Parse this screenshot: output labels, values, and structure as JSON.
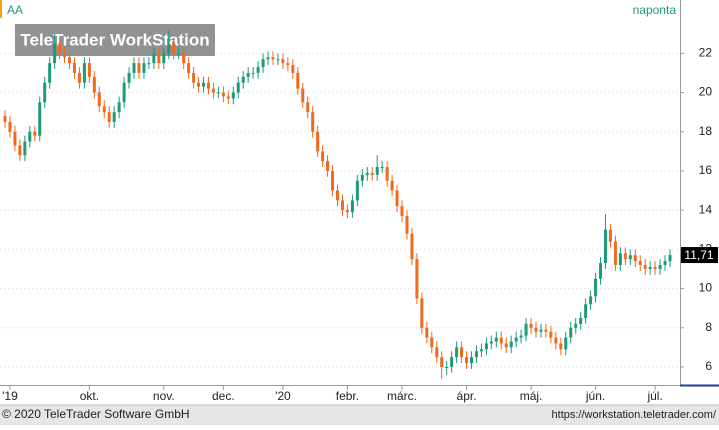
{
  "chart_data": {
    "type": "candlestick",
    "symbol": "AA",
    "interval": "naponta",
    "watermark": "TeleTrader WorkStation",
    "footer_left": "© 2020 TeleTrader Software GmbH",
    "footer_right": "https://workstation.teletrader.com/",
    "last_value_label": "11,71",
    "up_color": "#1b9a7c",
    "down_color": "#f0691c",
    "grid": true,
    "ylim": [
      5.08,
      24.72
    ],
    "yticks": [
      6,
      8,
      10,
      12,
      14,
      16,
      18,
      20,
      22
    ],
    "xlim": [
      -1,
      135
    ],
    "xticks": [
      {
        "value": 1,
        "label": "'19"
      },
      {
        "value": 17,
        "label": "okt."
      },
      {
        "value": 32,
        "label": "nov."
      },
      {
        "value": 44,
        "label": "dec."
      },
      {
        "value": 56,
        "label": "'20"
      },
      {
        "value": 69,
        "label": "febr."
      },
      {
        "value": 80,
        "label": "márc."
      },
      {
        "value": 93,
        "label": "ápr."
      },
      {
        "value": 106,
        "label": "máj."
      },
      {
        "value": 119,
        "label": "jún."
      },
      {
        "value": 131,
        "label": "júl."
      }
    ],
    "candles": [
      [
        18.8,
        19.1,
        18.2,
        18.5
      ],
      [
        18.5,
        18.8,
        17.7,
        18.0
      ],
      [
        18.0,
        18.3,
        17.0,
        17.3
      ],
      [
        17.3,
        17.6,
        16.5,
        16.8
      ],
      [
        16.8,
        17.8,
        16.5,
        17.5
      ],
      [
        17.5,
        18.3,
        17.2,
        18.0
      ],
      [
        18.0,
        18.3,
        17.5,
        17.8
      ],
      [
        17.8,
        19.8,
        17.5,
        19.5
      ],
      [
        19.5,
        20.8,
        19.2,
        20.5
      ],
      [
        20.5,
        21.8,
        20.2,
        21.5
      ],
      [
        21.5,
        23.0,
        21.2,
        22.5
      ],
      [
        22.5,
        22.8,
        21.7,
        22.0
      ],
      [
        22.0,
        22.3,
        21.5,
        21.8
      ],
      [
        21.8,
        22.1,
        21.2,
        21.5
      ],
      [
        21.5,
        21.8,
        20.7,
        21.0
      ],
      [
        21.0,
        21.3,
        20.2,
        20.5
      ],
      [
        20.5,
        21.8,
        20.2,
        21.5
      ],
      [
        21.5,
        21.8,
        20.5,
        20.8
      ],
      [
        20.8,
        21.1,
        19.7,
        20.0
      ],
      [
        20.0,
        20.3,
        19.0,
        19.3
      ],
      [
        19.3,
        19.6,
        18.7,
        19.0
      ],
      [
        19.0,
        19.3,
        18.2,
        18.5
      ],
      [
        18.5,
        19.3,
        18.2,
        19.0
      ],
      [
        19.0,
        19.8,
        18.7,
        19.5
      ],
      [
        19.5,
        20.8,
        19.2,
        20.5
      ],
      [
        20.5,
        21.3,
        20.2,
        21.0
      ],
      [
        21.0,
        21.8,
        20.7,
        21.5
      ],
      [
        21.5,
        21.8,
        20.7,
        21.0
      ],
      [
        21.0,
        21.8,
        20.7,
        21.5
      ],
      [
        21.5,
        21.8,
        21.2,
        21.5
      ],
      [
        21.5,
        22.3,
        21.2,
        22.0
      ],
      [
        22.0,
        22.3,
        21.2,
        21.5
      ],
      [
        21.5,
        22.3,
        21.2,
        22.0
      ],
      [
        22.0,
        23.2,
        21.7,
        22.5
      ],
      [
        22.5,
        22.8,
        21.7,
        22.0
      ],
      [
        22.0,
        22.3,
        21.7,
        22.0
      ],
      [
        22.0,
        22.3,
        21.2,
        21.5
      ],
      [
        21.5,
        21.8,
        20.7,
        21.0
      ],
      [
        21.0,
        21.3,
        20.2,
        20.5
      ],
      [
        20.5,
        20.8,
        20.0,
        20.3
      ],
      [
        20.3,
        20.8,
        20.0,
        20.5
      ],
      [
        20.5,
        20.8,
        19.9,
        20.2
      ],
      [
        20.2,
        20.5,
        19.7,
        20.0
      ],
      [
        20.0,
        20.3,
        19.7,
        20.0
      ],
      [
        20.0,
        20.3,
        19.5,
        19.8
      ],
      [
        19.8,
        20.1,
        19.4,
        19.7
      ],
      [
        19.7,
        20.3,
        19.4,
        20.0
      ],
      [
        20.0,
        20.8,
        19.7,
        20.5
      ],
      [
        20.5,
        21.1,
        20.2,
        20.8
      ],
      [
        20.8,
        21.3,
        20.5,
        21.0
      ],
      [
        21.0,
        21.3,
        20.7,
        21.0
      ],
      [
        21.0,
        21.6,
        20.7,
        21.3
      ],
      [
        21.3,
        22.0,
        21.0,
        21.7
      ],
      [
        21.7,
        22.1,
        21.4,
        21.8
      ],
      [
        21.8,
        22.1,
        21.4,
        21.7
      ],
      [
        21.7,
        22.0,
        21.4,
        21.7
      ],
      [
        21.7,
        22.0,
        21.2,
        21.5
      ],
      [
        21.5,
        21.8,
        21.1,
        21.4
      ],
      [
        21.4,
        21.7,
        20.7,
        21.0
      ],
      [
        21.0,
        21.3,
        19.9,
        20.2
      ],
      [
        20.2,
        20.5,
        19.2,
        19.5
      ],
      [
        19.5,
        19.8,
        18.7,
        19.0
      ],
      [
        19.0,
        19.3,
        17.7,
        18.0
      ],
      [
        18.0,
        18.3,
        16.7,
        17.0
      ],
      [
        17.0,
        17.3,
        16.2,
        16.5
      ],
      [
        16.5,
        16.8,
        15.7,
        16.0
      ],
      [
        16.0,
        16.3,
        14.7,
        15.0
      ],
      [
        15.0,
        15.3,
        14.2,
        14.5
      ],
      [
        14.5,
        14.8,
        13.7,
        14.0
      ],
      [
        14.0,
        14.3,
        13.6,
        13.9
      ],
      [
        13.9,
        14.8,
        13.6,
        14.5
      ],
      [
        14.5,
        15.8,
        14.2,
        15.5
      ],
      [
        15.5,
        16.1,
        15.2,
        15.8
      ],
      [
        15.8,
        16.2,
        15.5,
        15.9
      ],
      [
        15.9,
        16.2,
        15.5,
        15.8
      ],
      [
        15.8,
        16.8,
        15.5,
        16.2
      ],
      [
        16.2,
        16.5,
        15.9,
        16.2
      ],
      [
        16.2,
        16.5,
        15.2,
        15.5
      ],
      [
        15.5,
        15.8,
        14.7,
        15.0
      ],
      [
        15.0,
        15.3,
        13.9,
        14.2
      ],
      [
        14.2,
        14.5,
        13.4,
        13.7
      ],
      [
        13.7,
        14.0,
        12.5,
        12.8
      ],
      [
        12.8,
        13.1,
        11.2,
        11.5
      ],
      [
        11.5,
        11.8,
        9.2,
        9.5
      ],
      [
        9.5,
        9.8,
        7.7,
        8.0
      ],
      [
        8.0,
        8.3,
        7.2,
        7.5
      ],
      [
        7.5,
        7.8,
        6.7,
        7.0
      ],
      [
        7.0,
        7.3,
        6.2,
        6.5
      ],
      [
        6.5,
        6.8,
        5.4,
        6.0
      ],
      [
        6.0,
        6.3,
        5.6,
        6.0
      ],
      [
        6.0,
        6.8,
        5.7,
        6.5
      ],
      [
        6.5,
        7.3,
        6.2,
        7.0
      ],
      [
        7.0,
        7.3,
        6.2,
        6.5
      ],
      [
        6.5,
        6.8,
        5.9,
        6.2
      ],
      [
        6.2,
        6.8,
        5.9,
        6.5
      ],
      [
        6.5,
        7.1,
        6.2,
        6.8
      ],
      [
        6.8,
        7.2,
        6.5,
        6.9
      ],
      [
        6.9,
        7.5,
        6.6,
        7.2
      ],
      [
        7.2,
        7.6,
        6.9,
        7.3
      ],
      [
        7.3,
        7.8,
        7.0,
        7.5
      ],
      [
        7.5,
        7.8,
        6.9,
        7.2
      ],
      [
        7.2,
        7.5,
        6.7,
        7.0
      ],
      [
        7.0,
        7.6,
        6.7,
        7.3
      ],
      [
        7.3,
        7.8,
        7.0,
        7.5
      ],
      [
        7.5,
        7.9,
        7.2,
        7.6
      ],
      [
        7.6,
        8.5,
        7.3,
        8.2
      ],
      [
        8.2,
        8.5,
        7.7,
        8.0
      ],
      [
        8.0,
        8.3,
        7.5,
        7.8
      ],
      [
        7.8,
        8.2,
        7.5,
        7.9
      ],
      [
        7.9,
        8.2,
        7.5,
        7.8
      ],
      [
        7.8,
        8.1,
        7.2,
        7.5
      ],
      [
        7.5,
        7.8,
        6.9,
        7.2
      ],
      [
        7.2,
        7.5,
        6.6,
        6.9
      ],
      [
        6.9,
        7.8,
        6.6,
        7.5
      ],
      [
        7.5,
        8.3,
        7.2,
        8.0
      ],
      [
        8.0,
        8.5,
        7.7,
        8.2
      ],
      [
        8.2,
        8.8,
        7.9,
        8.5
      ],
      [
        8.5,
        9.5,
        8.2,
        9.2
      ],
      [
        9.2,
        9.9,
        8.9,
        9.6
      ],
      [
        9.6,
        10.8,
        9.3,
        10.5
      ],
      [
        10.5,
        11.6,
        10.2,
        11.3
      ],
      [
        11.3,
        13.8,
        11.0,
        13.0
      ],
      [
        13.0,
        13.3,
        12.1,
        12.4
      ],
      [
        12.4,
        12.7,
        10.9,
        11.2
      ],
      [
        11.2,
        12.1,
        10.9,
        11.8
      ],
      [
        11.8,
        12.1,
        11.2,
        11.5
      ],
      [
        11.5,
        12.0,
        11.2,
        11.7
      ],
      [
        11.7,
        12.0,
        11.1,
        11.4
      ],
      [
        11.4,
        11.7,
        10.9,
        11.2
      ],
      [
        11.2,
        11.5,
        10.7,
        11.0
      ],
      [
        11.0,
        11.4,
        10.7,
        11.1
      ],
      [
        11.1,
        11.4,
        10.7,
        11.0
      ],
      [
        11.0,
        11.5,
        10.7,
        11.2
      ],
      [
        11.2,
        11.7,
        10.9,
        11.4
      ],
      [
        11.4,
        12.0,
        11.1,
        11.71
      ]
    ]
  }
}
